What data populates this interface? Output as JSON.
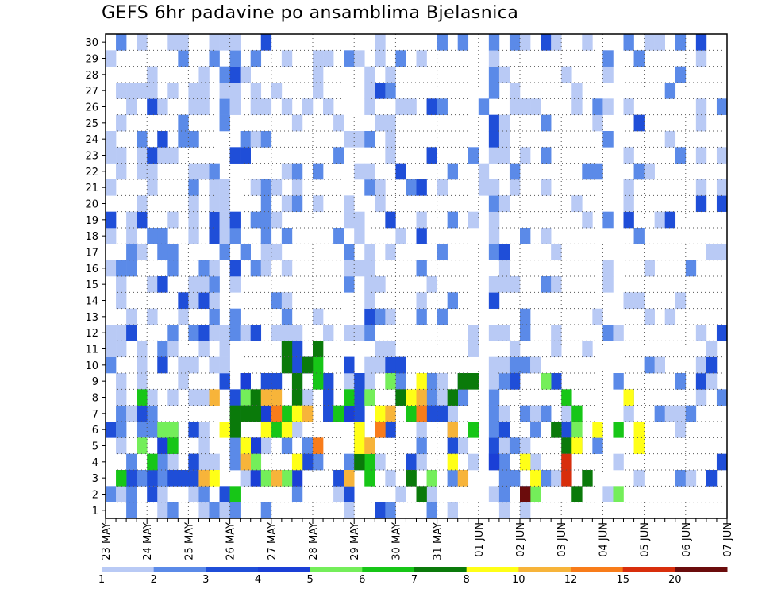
{
  "chart_data": {
    "type": "heatmap",
    "title": "GEFS 6hr padavine po ansamblima Bjelasnica",
    "xlabel": "",
    "ylabel": "",
    "x_tick_labels": [
      "23 MAY",
      "24 MAY",
      "25 MAY",
      "26 MAY",
      "27 MAY",
      "28 MAY",
      "29 MAY",
      "30 MAY",
      "31 MAY",
      "01 JUN",
      "02 JUN",
      "03 JUN",
      "04 JUN",
      "05 JUN",
      "06 JUN",
      "07 JUN"
    ],
    "y_tick_labels": [
      "1",
      "2",
      "3",
      "4",
      "5",
      "6",
      "7",
      "8",
      "9",
      "10",
      "11",
      "12",
      "13",
      "14",
      "15",
      "16",
      "17",
      "18",
      "19",
      "20",
      "21",
      "22",
      "23",
      "24",
      "25",
      "26",
      "27",
      "28",
      "29",
      "30"
    ],
    "members": 30,
    "steps": 60,
    "step_hours": 6,
    "colorbar": {
      "labels": [
        "1",
        "2",
        "3",
        "4",
        "5",
        "6",
        "7",
        "8",
        "10",
        "12",
        "15",
        "20"
      ],
      "thresholds": [
        1,
        2,
        3,
        4,
        5,
        6,
        7,
        8,
        10,
        12,
        15,
        20
      ],
      "colors": [
        "#b9caf5",
        "#5b8ae8",
        "#1f4ed8",
        "#1a3fd6",
        "#74ee5a",
        "#17c617",
        "#0a7a0a",
        "#ffff17",
        "#f7b43a",
        "#f87c1a",
        "#d82e0c",
        "#6b0c0c"
      ]
    },
    "series": [
      {
        "name": "1",
        "cells": [
          [
            3,
            5
          ],
          [
            19,
            5
          ],
          [
            23,
            8
          ],
          [
            23,
            9
          ],
          [
            25,
            8
          ],
          [
            26,
            11
          ]
        ]
      },
      {
        "name": "2",
        "cells": [
          [
            2,
            1
          ],
          [
            3,
            3
          ],
          [
            5,
            3
          ],
          [
            5,
            4
          ],
          [
            12,
            4
          ],
          [
            12,
            5
          ],
          [
            16,
            6
          ],
          [
            17,
            5
          ],
          [
            18,
            2
          ],
          [
            19,
            5
          ],
          [
            23,
            3
          ],
          [
            23,
            4
          ],
          [
            23,
            7
          ],
          [
            24,
            6
          ],
          [
            24,
            7
          ],
          [
            28,
            8
          ],
          [
            28,
            9
          ],
          [
            31,
            1
          ],
          [
            33,
            3
          ],
          [
            34,
            8
          ],
          [
            34,
            9
          ],
          [
            38,
            2
          ],
          [
            38,
            3
          ],
          [
            38,
            4
          ]
        ]
      },
      {
        "name": "3",
        "cells": [
          [
            2,
            3
          ],
          [
            3,
            7
          ],
          [
            4,
            3
          ],
          [
            5,
            10
          ],
          [
            6,
            3
          ],
          [
            7,
            3
          ],
          [
            8,
            4
          ],
          [
            8,
            6
          ],
          [
            9,
            3
          ],
          [
            12,
            8
          ],
          [
            13,
            8
          ],
          [
            13,
            9
          ],
          [
            16,
            9
          ],
          [
            18,
            10
          ],
          [
            18,
            11
          ],
          [
            19,
            4
          ],
          [
            19,
            10
          ],
          [
            21,
            7
          ],
          [
            21,
            8
          ],
          [
            22,
            3
          ],
          [
            23,
            10
          ],
          [
            24,
            5
          ],
          [
            24,
            6
          ],
          [
            24,
            7
          ],
          [
            24,
            8
          ],
          [
            24,
            9
          ],
          [
            27,
            6
          ],
          [
            28,
            10
          ],
          [
            31,
            7
          ],
          [
            32,
            7
          ],
          [
            33,
            5
          ],
          [
            39,
            9
          ],
          [
            44,
            6
          ],
          [
            45,
            5
          ]
        ]
      },
      {
        "name": "4",
        "cells": [
          [
            5,
            5
          ],
          [
            6,
            6
          ],
          [
            13,
            9
          ],
          [
            14,
            3
          ],
          [
            14,
            5
          ],
          [
            15,
            7
          ],
          [
            18,
            3
          ],
          [
            23,
            7
          ],
          [
            37,
            4
          ],
          [
            40,
            2
          ]
        ]
      },
      {
        "name": "5",
        "cells": [
          [
            3,
            5
          ],
          [
            5,
            6
          ],
          [
            6,
            6
          ],
          [
            13,
            8
          ],
          [
            14,
            4
          ],
          [
            15,
            3
          ],
          [
            16,
            3
          ],
          [
            17,
            3
          ],
          [
            25,
            8
          ],
          [
            27,
            9
          ],
          [
            31,
            3
          ],
          [
            41,
            2
          ],
          [
            42,
            9
          ],
          [
            45,
            6
          ],
          [
            49,
            2
          ]
        ]
      },
      {
        "name": "6",
        "cells": [
          [
            1,
            3
          ],
          [
            3,
            8
          ],
          [
            4,
            4
          ],
          [
            6,
            5
          ],
          [
            12,
            2
          ],
          [
            16,
            6
          ],
          [
            17,
            7
          ],
          [
            20,
            9
          ],
          [
            20,
            10
          ],
          [
            22,
            7
          ],
          [
            23,
            8
          ],
          [
            25,
            3
          ],
          [
            25,
            4
          ],
          [
            29,
            7
          ],
          [
            35,
            6
          ],
          [
            44,
            8
          ],
          [
            45,
            7
          ],
          [
            49,
            6
          ]
        ]
      },
      {
        "name": "7",
        "cells": [
          [
            12,
            6
          ],
          [
            12,
            7
          ],
          [
            13,
            7
          ],
          [
            14,
            7
          ],
          [
            14,
            8
          ],
          [
            17,
            10
          ],
          [
            17,
            11
          ],
          [
            18,
            8
          ],
          [
            18,
            9
          ],
          [
            19,
            10
          ],
          [
            20,
            11
          ],
          [
            24,
            4
          ],
          [
            28,
            8
          ],
          [
            29,
            3
          ],
          [
            30,
            2
          ],
          [
            33,
            8
          ],
          [
            34,
            9
          ],
          [
            35,
            9
          ],
          [
            43,
            6
          ],
          [
            44,
            5
          ],
          [
            45,
            2
          ],
          [
            46,
            3
          ]
        ]
      },
      {
        "name": "8",
        "cells": [
          [
            10,
            3
          ],
          [
            11,
            6
          ],
          [
            13,
            5
          ],
          [
            15,
            6
          ],
          [
            17,
            6
          ],
          [
            18,
            4
          ],
          [
            18,
            7
          ],
          [
            24,
            5
          ],
          [
            24,
            6
          ],
          [
            25,
            5
          ],
          [
            26,
            7
          ],
          [
            29,
            8
          ],
          [
            30,
            9
          ],
          [
            33,
            4
          ],
          [
            40,
            4
          ],
          [
            41,
            3
          ],
          [
            45,
            5
          ],
          [
            47,
            6
          ],
          [
            50,
            8
          ],
          [
            51,
            5
          ],
          [
            51,
            6
          ]
        ]
      },
      {
        "name": "10",
        "cells": [
          [
            9,
            3
          ],
          [
            10,
            8
          ],
          [
            13,
            4
          ],
          [
            15,
            8
          ],
          [
            16,
            3
          ],
          [
            16,
            8
          ],
          [
            19,
            7
          ],
          [
            23,
            3
          ],
          [
            25,
            5
          ],
          [
            27,
            7
          ],
          [
            30,
            8
          ],
          [
            33,
            6
          ],
          [
            34,
            3
          ]
        ]
      },
      {
        "name": "12",
        "cells": [
          [
            16,
            7
          ],
          [
            20,
            5
          ],
          [
            26,
            6
          ],
          [
            30,
            7
          ]
        ]
      },
      {
        "name": "15",
        "cells": [
          [
            44,
            3
          ],
          [
            44,
            4
          ]
        ]
      },
      {
        "name": "20",
        "cells": [
          [
            40,
            2
          ]
        ]
      }
    ]
  }
}
